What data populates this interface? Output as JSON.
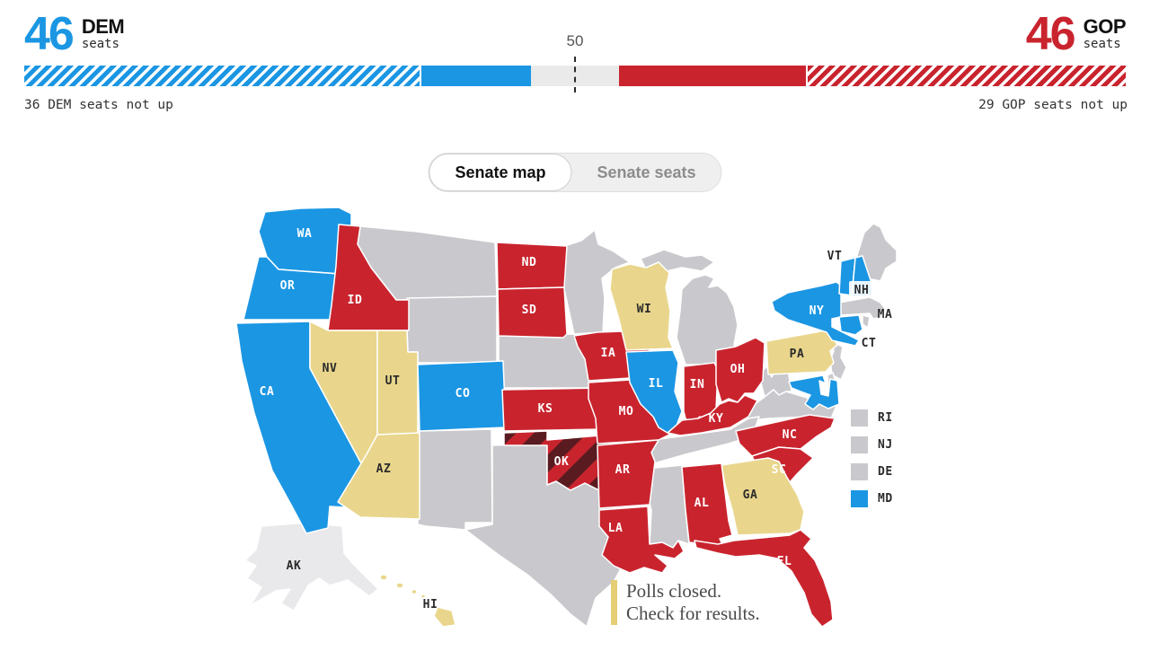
{
  "header": {
    "dem_count": "46",
    "dem_party": "DEM",
    "dem_unit": "seats",
    "gop_count": "46",
    "gop_party": "GOP",
    "gop_unit": "seats",
    "majority_label": "50",
    "dem_not_up": "36 DEM seats not up",
    "gop_not_up": "29 GOP seats not up"
  },
  "toggle": {
    "map_label": "Senate map",
    "seats_label": "Senate seats",
    "selected": "Senate map"
  },
  "balance_bar": {
    "total": 100,
    "segments": [
      {
        "name": "dem-seats-not-up",
        "seats": 36,
        "style": "dem-hatch"
      },
      {
        "name": "dem-seats-won",
        "seats": 10,
        "style": "dem-solid"
      },
      {
        "name": "undecided",
        "seats": 8,
        "style": "tossup"
      },
      {
        "name": "gop-seats-won",
        "seats": 17,
        "style": "gop-solid"
      },
      {
        "name": "gop-seats-not-up",
        "seats": 29,
        "style": "gop-hatch"
      }
    ]
  },
  "colors": {
    "dem": "#1B96E3",
    "gop": "#C9242E",
    "gop_dark": "#5A1B20",
    "polls_closed": "#E9D68C",
    "not_up": "#C9C9CD",
    "no_race": "#E9E9EB",
    "tossup": "#EAEAEA",
    "note": "#E6CE74"
  },
  "map": {
    "labels": {
      "WA": "WA",
      "OR": "OR",
      "CA": "CA",
      "ID": "ID",
      "NV": "NV",
      "UT": "UT",
      "AZ": "AZ",
      "CO": "CO",
      "ND": "ND",
      "SD": "SD",
      "KS": "KS",
      "OK": "OK",
      "IA": "IA",
      "MO": "MO",
      "AR": "AR",
      "LA": "LA",
      "WI": "WI",
      "IL": "IL",
      "IN": "IN",
      "OH": "OH",
      "KY": "KY",
      "NC": "NC",
      "SC": "SC",
      "AL": "AL",
      "GA": "GA",
      "FL": "FL",
      "PA": "PA",
      "NY": "NY",
      "VT": "VT",
      "NH": "NH",
      "MA": "MA",
      "CT": "CT",
      "AK": "AK",
      "HI": "HI"
    },
    "states": {
      "WA": "dem",
      "OR": "dem",
      "CA": "dem",
      "CO": "dem",
      "IL": "dem",
      "NY": "dem",
      "VT": "dem",
      "NH": "dem",
      "CT": "dem",
      "MD": "dem",
      "ID": "gop",
      "ND": "gop",
      "SD": "gop",
      "IA": "gop",
      "KS": "gop",
      "MO": "gop",
      "AR": "gop",
      "LA": "gop",
      "IN": "gop",
      "OH": "gop",
      "KY": "gop",
      "NC": "gop",
      "SC": "gop",
      "AL": "gop",
      "FL": "gop",
      "OK": "gop_striped",
      "NV": "polls_closed",
      "UT": "polls_closed",
      "AZ": "polls_closed",
      "WI": "polls_closed",
      "PA": "polls_closed",
      "GA": "polls_closed",
      "HI": "polls_closed",
      "MT": "not_up",
      "WY": "not_up",
      "NM": "not_up",
      "TX": "not_up",
      "NE": "not_up",
      "MN": "not_up",
      "MI": "not_up",
      "WV": "not_up",
      "VA": "not_up",
      "TN": "not_up",
      "MS": "not_up",
      "ME": "not_up",
      "MA": "not_up",
      "NJ": "not_up",
      "DE": "not_up",
      "RI": "not_up",
      "AK": "no_race"
    }
  },
  "legend_states": [
    {
      "abbr": "RI",
      "status": "not_up"
    },
    {
      "abbr": "NJ",
      "status": "not_up"
    },
    {
      "abbr": "DE",
      "status": "not_up"
    },
    {
      "abbr": "MD",
      "status": "dem"
    }
  ],
  "map_note": {
    "line1": "Polls closed.",
    "line2": "Check for results."
  }
}
